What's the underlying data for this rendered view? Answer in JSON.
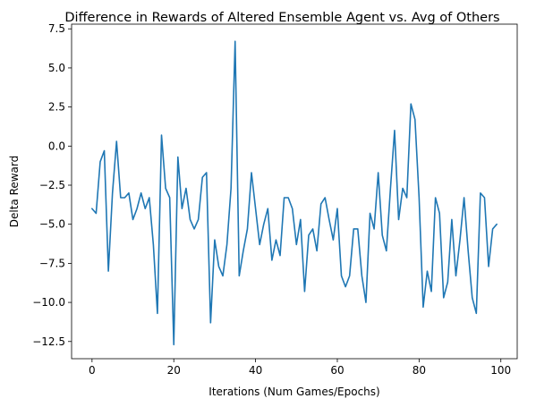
{
  "chart_data": {
    "type": "line",
    "title": "Difference in Rewards of Altered Ensemble Agent vs. Avg of Others",
    "xlabel": "Iterations (Num Games/Epochs)",
    "ylabel": "Delta Reward",
    "xlim": [
      -5,
      104
    ],
    "ylim": [
      -13.6,
      7.8
    ],
    "xticks": [
      0,
      20,
      40,
      60,
      80,
      100
    ],
    "xtick_labels": [
      "0",
      "20",
      "40",
      "60",
      "80",
      "100"
    ],
    "yticks": [
      7.5,
      5.0,
      2.5,
      0.0,
      -2.5,
      -5.0,
      -7.5,
      -10.0,
      -12.5
    ],
    "ytick_labels": [
      "7.5",
      "5.0",
      "2.5",
      "0.0",
      "−2.5",
      "−5.0",
      "−7.5",
      "−10.0",
      "−12.5"
    ],
    "grid": false,
    "line_color": "#1f77b4",
    "series": [
      {
        "name": "",
        "x": [
          0,
          1,
          2,
          3,
          4,
          5,
          6,
          7,
          8,
          9,
          10,
          11,
          12,
          13,
          14,
          15,
          16,
          17,
          18,
          19,
          20,
          21,
          22,
          23,
          24,
          25,
          26,
          27,
          28,
          29,
          30,
          31,
          32,
          33,
          34,
          35,
          36,
          37,
          38,
          39,
          40,
          41,
          42,
          43,
          44,
          45,
          46,
          47,
          48,
          49,
          50,
          51,
          52,
          53,
          54,
          55,
          56,
          57,
          58,
          59,
          60,
          61,
          62,
          63,
          64,
          65,
          66,
          67,
          68,
          69,
          70,
          71,
          72,
          73,
          74,
          75,
          76,
          77,
          78,
          79,
          80,
          81,
          82,
          83,
          84,
          85,
          86,
          87,
          88,
          89,
          90,
          91,
          92,
          93,
          94,
          95,
          96,
          97,
          98,
          99
        ],
        "y": [
          -4.0,
          -4.3,
          -1.0,
          -0.3,
          -8.0,
          -3.0,
          0.3,
          -3.3,
          -3.3,
          -3.0,
          -4.7,
          -4.0,
          -3.0,
          -4.0,
          -3.3,
          -6.3,
          -10.7,
          0.7,
          -2.7,
          -3.3,
          -12.7,
          -0.7,
          -4.0,
          -2.7,
          -4.7,
          -5.3,
          -4.7,
          -2.0,
          -1.7,
          -11.3,
          -6.0,
          -7.7,
          -8.3,
          -6.3,
          -2.7,
          6.7,
          -8.3,
          -6.7,
          -5.3,
          -1.7,
          -4.0,
          -6.3,
          -5.0,
          -4.0,
          -7.3,
          -6.0,
          -7.0,
          -3.3,
          -3.3,
          -4.0,
          -6.3,
          -4.7,
          -9.3,
          -5.7,
          -5.3,
          -6.7,
          -3.7,
          -3.3,
          -4.7,
          -6.0,
          -4.0,
          -8.3,
          -9.0,
          -8.3,
          -5.3,
          -5.3,
          -8.3,
          -10.0,
          -4.3,
          -5.3,
          -1.7,
          -5.7,
          -6.7,
          -2.7,
          1.0,
          -4.7,
          -2.7,
          -3.3,
          2.7,
          1.7,
          -3.3,
          -10.3,
          -8.0,
          -9.3,
          -3.3,
          -4.3,
          -9.7,
          -8.7,
          -4.7,
          -8.3,
          -6.0,
          -3.3,
          -6.7,
          -9.7,
          -10.7,
          -3.0,
          -3.3,
          -7.7,
          -5.3,
          -5.0
        ]
      }
    ]
  }
}
